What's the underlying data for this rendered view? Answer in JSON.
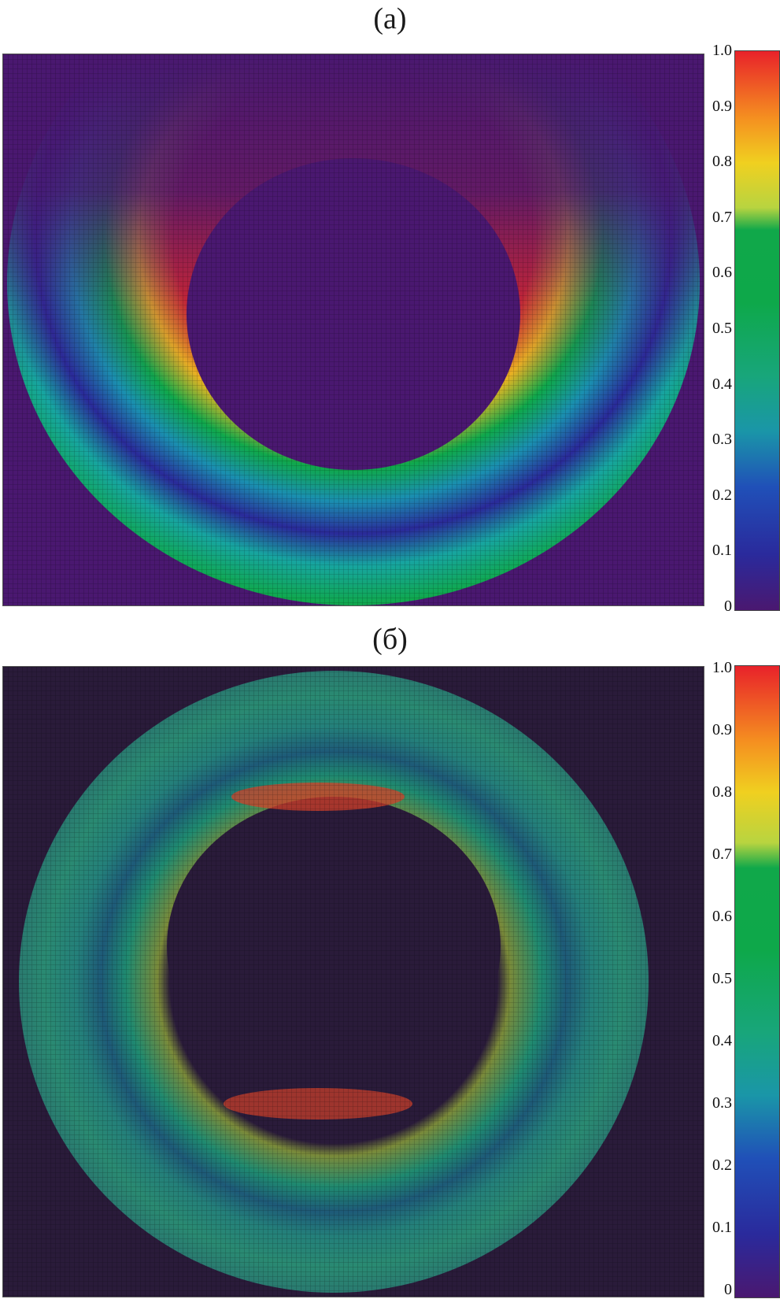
{
  "chart_data": [
    {
      "type": "heatmap",
      "title": "(а)",
      "description_of_field": "normalized intensity in a crescent-shaped annular region",
      "colorbar": {
        "min": 0,
        "max": 1.0,
        "tick_labels": [
          "1.0",
          "0.9",
          "0.8",
          "0.7",
          "0.6",
          "0.5",
          "0.4",
          "0.3",
          "0.2",
          "0.1",
          "0"
        ],
        "colormap": [
          "#4a1870",
          "#2a2aa0",
          "#1f5ab8",
          "#1a9aa6",
          "#14a664",
          "#0ea84a",
          "#c8d42a",
          "#f0c020",
          "#f58a1c",
          "#e8252a"
        ]
      },
      "peak_value": 1.0,
      "background_value": 0
    },
    {
      "type": "heatmap",
      "title": "(б)",
      "description_of_field": "normalized intensity in a full elliptical ring",
      "colorbar": {
        "min": 0,
        "max": 1.0,
        "tick_labels": [
          "1.0",
          "0.9",
          "0.8",
          "0.7",
          "0.6",
          "0.5",
          "0.4",
          "0.3",
          "0.2",
          "0.1",
          "0"
        ],
        "colormap": [
          "#4a1870",
          "#2a2aa0",
          "#1f5ab8",
          "#1a9aa6",
          "#14a664",
          "#0ea84a",
          "#c8d42a",
          "#f0c020",
          "#f58a1c",
          "#e8252a"
        ]
      },
      "peak_value": 0.95,
      "background_value": 0
    }
  ]
}
